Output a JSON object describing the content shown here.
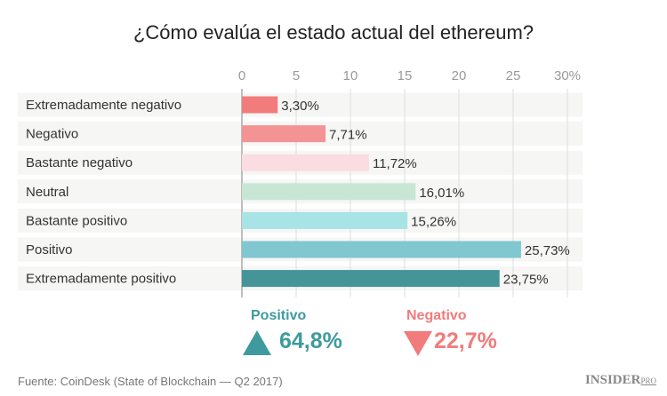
{
  "title": "¿Cómo evalúa el estado actual del ethereum?",
  "chart_data": {
    "type": "bar",
    "orientation": "horizontal",
    "title": "¿Cómo evalúa el estado actual del ethereum?",
    "categories": [
      "Extremadamente negativo",
      "Negativo",
      "Bastante negativo",
      "Neutral",
      "Bastante positivo",
      "Positivo",
      "Extremadamente positivo"
    ],
    "values": [
      3.3,
      7.71,
      11.72,
      16.01,
      15.26,
      25.73,
      23.75
    ],
    "value_labels": [
      "3,30%",
      "7,71%",
      "11,72%",
      "16,01%",
      "15,26%",
      "25,73%",
      "23,75%"
    ],
    "colors": [
      "#f27b7b",
      "#f49393",
      "#fadce1",
      "#c8e6d4",
      "#a8e3e6",
      "#80c7cf",
      "#459598"
    ],
    "xlim": [
      0,
      30
    ],
    "xticks": [
      0,
      5,
      10,
      15,
      20,
      25,
      30
    ],
    "xtick_labels": [
      "0",
      "5",
      "10",
      "15",
      "20",
      "25",
      "30%"
    ],
    "grid": true
  },
  "summary": {
    "positive": {
      "label": "Positivo",
      "value": "64,8%",
      "color": "#3f9a9d",
      "icon": "triangle-up-icon"
    },
    "negative": {
      "label": "Negativo",
      "value": "22,7%",
      "color": "#f27b7b",
      "icon": "triangle-down-icon"
    }
  },
  "footer": {
    "source": "Fuente: CoinDesk (State of Blockchain — Q2 2017)",
    "logo": "INSIDER",
    "logo_suffix": "PRO"
  }
}
